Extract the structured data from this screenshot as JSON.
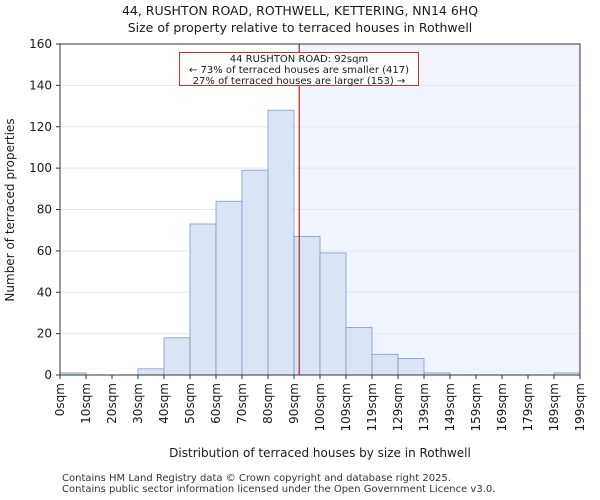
{
  "chart_data": {
    "type": "histogram",
    "title": "44, RUSHTON ROAD, ROTHWELL, KETTERING, NN14 6HQ",
    "subtitle": "Size of property relative to terraced houses in Rothwell",
    "xlabel": "Distribution of terraced houses by size in Rothwell",
    "ylabel": "Number of terraced properties",
    "ylim": [
      0,
      160
    ],
    "yticks": [
      0,
      20,
      40,
      60,
      80,
      100,
      120,
      140,
      160
    ],
    "categories": [
      "0sqm",
      "10sqm",
      "20sqm",
      "30sqm",
      "40sqm",
      "50sqm",
      "60sqm",
      "70sqm",
      "80sqm",
      "90sqm",
      "100sqm",
      "109sqm",
      "119sqm",
      "129sqm",
      "139sqm",
      "149sqm",
      "159sqm",
      "169sqm",
      "179sqm",
      "189sqm",
      "199sqm"
    ],
    "values": [
      1,
      0,
      0,
      3,
      18,
      73,
      84,
      99,
      128,
      67,
      59,
      23,
      10,
      8,
      1,
      0,
      0,
      0,
      0,
      1
    ],
    "subject_value": 92,
    "subject_bin_position": 9.2,
    "annotation": {
      "line1": "44 RUSHTON ROAD: 92sqm",
      "line2": "← 73% of terraced houses are smaller (417)",
      "line3": "27% of terraced houses are larger (153) →"
    },
    "colors": {
      "bar_fill": "#dae4f5",
      "bar_edge": "#7f9cc7",
      "highlight_bg": "#f0f4fc",
      "marker": "#b22222"
    }
  },
  "footer": {
    "line1": "Contains HM Land Registry data © Crown copyright and database right 2025.",
    "line2": "Contains public sector information licensed under the Open Government Licence v3.0."
  }
}
